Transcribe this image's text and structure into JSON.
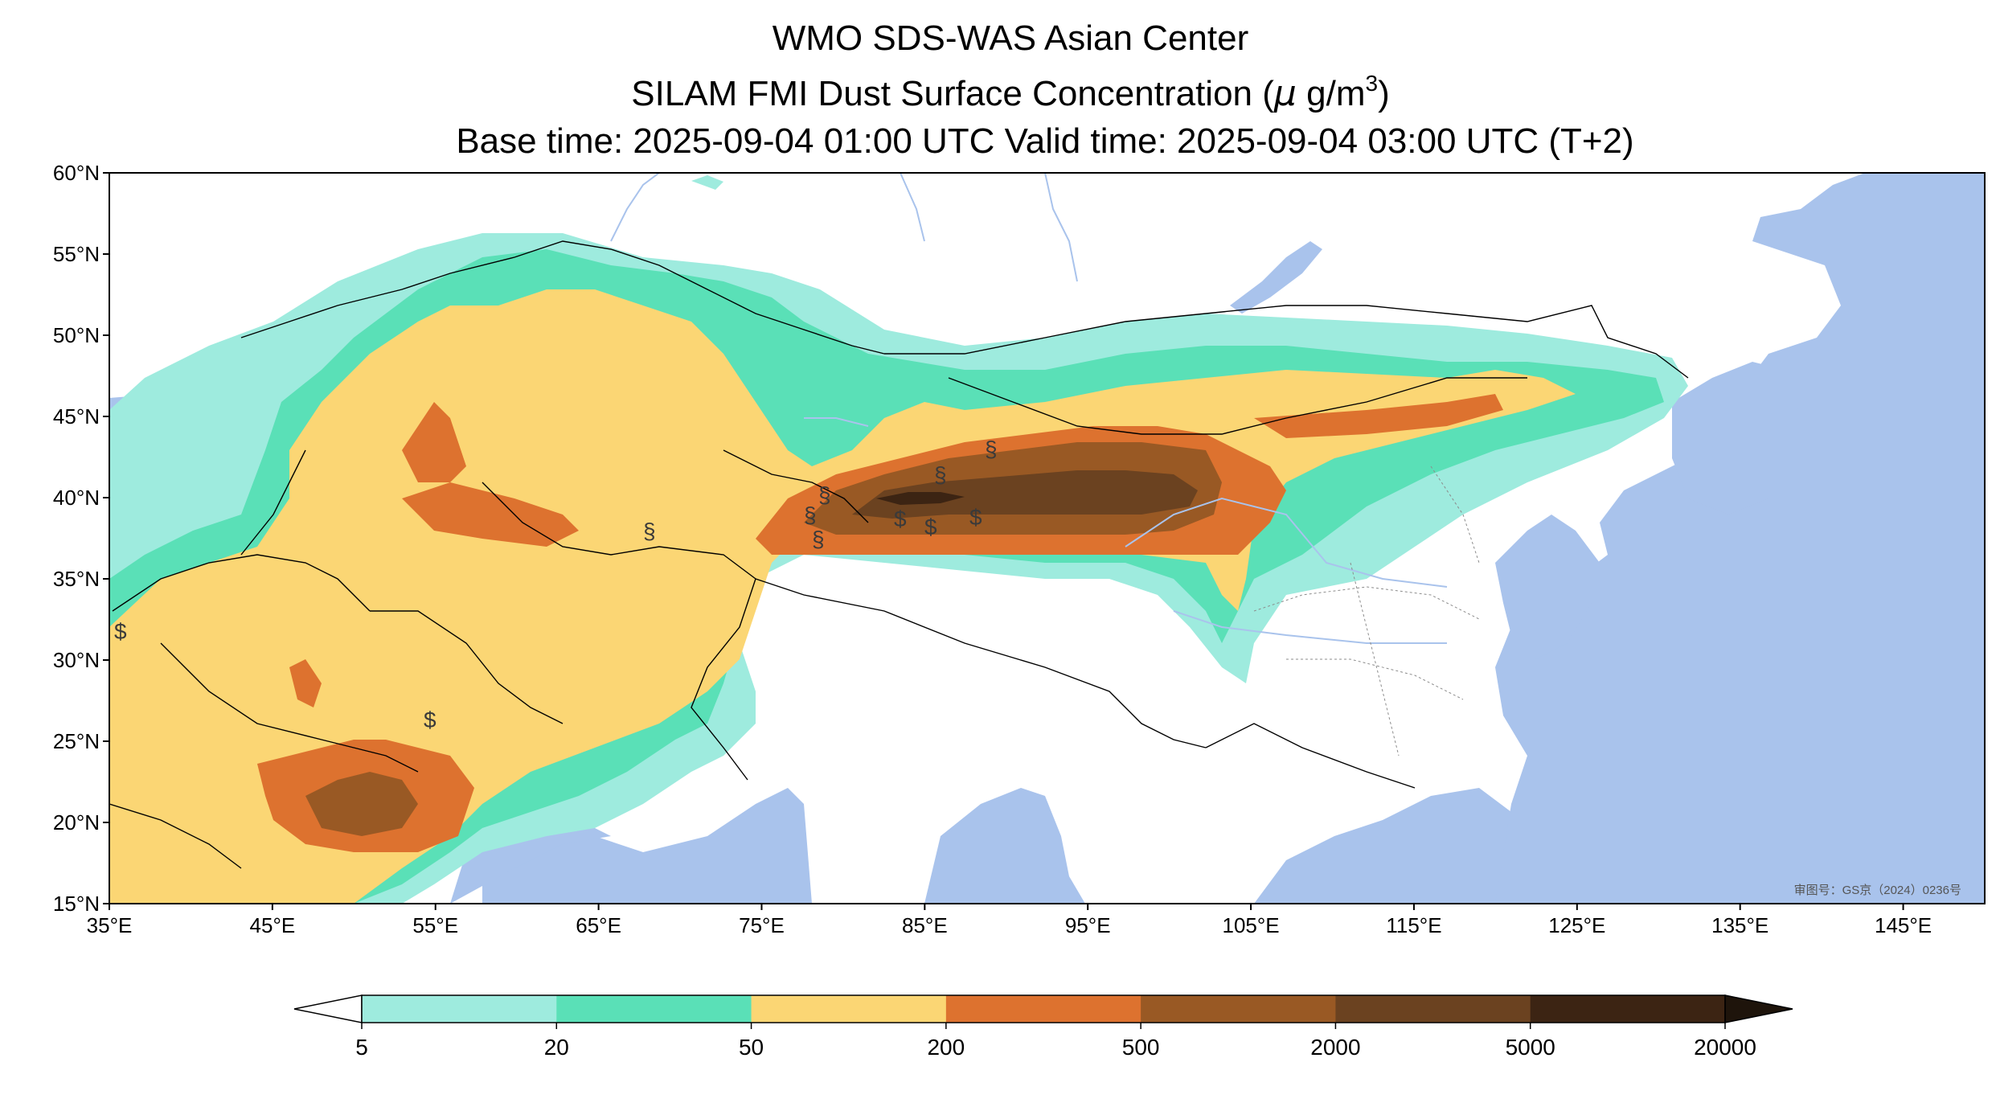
{
  "titles": {
    "line1": "WMO SDS-WAS Asian Center",
    "line2_prefix": "SILAM FMI Dust Surface Concentration (",
    "line2_mu": "μ",
    "line2_units": " g/m",
    "line2_sup": "3",
    "line2_close": ")",
    "line3": "Base time: 2025-09-04 01:00 UTC Valid time: 2025-09-04 03:00 UTC (T+2)"
  },
  "map": {
    "extent": {
      "lon_min": 35,
      "lon_max": 150,
      "lat_min": 15,
      "lat_max": 60
    },
    "lat_ticks": [
      {
        "value": 60,
        "label": "60°N"
      },
      {
        "value": 55,
        "label": "55°N"
      },
      {
        "value": 50,
        "label": "50°N"
      },
      {
        "value": 45,
        "label": "45°N"
      },
      {
        "value": 40,
        "label": "40°N"
      },
      {
        "value": 35,
        "label": "35°N"
      },
      {
        "value": 30,
        "label": "30°N"
      },
      {
        "value": 25,
        "label": "25°N"
      },
      {
        "value": 20,
        "label": "20°N"
      },
      {
        "value": 15,
        "label": "15°N"
      }
    ],
    "lon_ticks": [
      {
        "value": 35,
        "label": "35°E"
      },
      {
        "value": 45,
        "label": "45°E"
      },
      {
        "value": 55,
        "label": "55°E"
      },
      {
        "value": 65,
        "label": "65°E"
      },
      {
        "value": 75,
        "label": "75°E"
      },
      {
        "value": 85,
        "label": "85°E"
      },
      {
        "value": 95,
        "label": "95°E"
      },
      {
        "value": 105,
        "label": "105°E"
      },
      {
        "value": 115,
        "label": "115°E"
      },
      {
        "value": 125,
        "label": "125°E"
      },
      {
        "value": 135,
        "label": "135°E"
      },
      {
        "value": 145,
        "label": "145°E"
      }
    ],
    "approval_stamp": "审图号：GS京（2024）0236号",
    "colors": {
      "ocean": "#a9c3ec",
      "land": "#ffffff",
      "river": "#a9c3ec",
      "border": "#000000"
    }
  },
  "colorbar": {
    "levels": [
      "5",
      "20",
      "50",
      "200",
      "500",
      "2000",
      "5000",
      "20000"
    ],
    "colors": [
      "#9eebde",
      "#5ae0b7",
      "#fbd674",
      "#dd722f",
      "#995924",
      "#6b4220",
      "#3c2413"
    ],
    "under_color": "#ffffff",
    "over_color": "#1e140b"
  }
}
